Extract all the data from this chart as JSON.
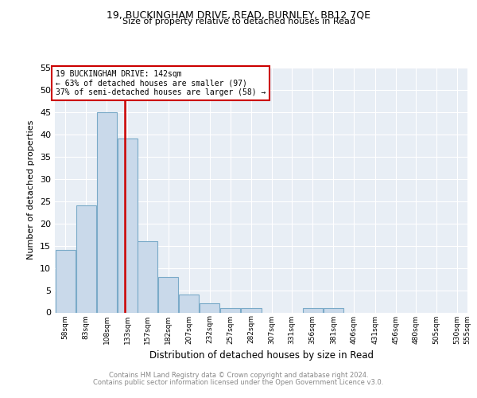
{
  "title1": "19, BUCKINGHAM DRIVE, READ, BURNLEY, BB12 7QE",
  "title2": "Size of property relative to detached houses in Read",
  "xlabel": "Distribution of detached houses by size in Read",
  "ylabel": "Number of detached properties",
  "bar_color": "#c9d9ea",
  "bar_edge_color": "#7aaac8",
  "vline_color": "#cc0000",
  "vline_x": 142,
  "annotation_line1": "19 BUCKINGHAM DRIVE: 142sqm",
  "annotation_line2": "← 63% of detached houses are smaller (97)",
  "annotation_line3": "37% of semi-detached houses are larger (58) →",
  "bins": [
    58,
    83,
    108,
    133,
    157,
    182,
    207,
    232,
    257,
    282,
    307,
    331,
    356,
    381,
    406,
    431,
    456,
    480,
    505,
    530,
    555
  ],
  "bin_labels": [
    "58sqm",
    "83sqm",
    "108sqm",
    "133sqm",
    "157sqm",
    "182sqm",
    "207sqm",
    "232sqm",
    "257sqm",
    "282sqm",
    "307sqm",
    "331sqm",
    "356sqm",
    "381sqm",
    "406sqm",
    "431sqm",
    "456sqm",
    "480sqm",
    "505sqm",
    "530sqm",
    "555sqm"
  ],
  "counts": [
    14,
    24,
    45,
    39,
    16,
    8,
    4,
    2,
    1,
    1,
    0,
    0,
    1,
    1,
    0,
    0,
    0,
    0,
    0,
    0
  ],
  "ylim": [
    0,
    55
  ],
  "yticks": [
    0,
    5,
    10,
    15,
    20,
    25,
    30,
    35,
    40,
    45,
    50,
    55
  ],
  "footer1": "Contains HM Land Registry data © Crown copyright and database right 2024.",
  "footer2": "Contains public sector information licensed under the Open Government Licence v3.0.",
  "plot_bg_color": "#e8eef5"
}
